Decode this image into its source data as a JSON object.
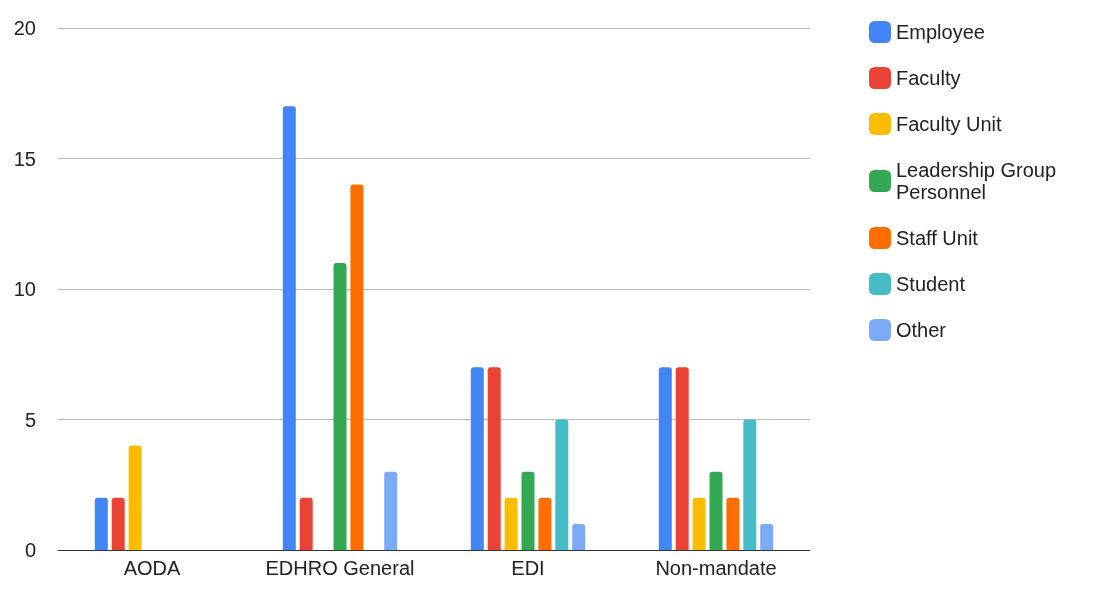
{
  "chart_data": {
    "type": "bar",
    "categories": [
      "AODA",
      "EDHRO General",
      "EDI",
      "Non-mandate"
    ],
    "series": [
      {
        "name": "Employee",
        "color": "#4285f4",
        "values": [
          2,
          17,
          7,
          7
        ]
      },
      {
        "name": "Faculty",
        "color": "#ea4335",
        "values": [
          2,
          2,
          7,
          7
        ]
      },
      {
        "name": "Faculty Unit",
        "color": "#fbbc04",
        "values": [
          4,
          0,
          2,
          2
        ]
      },
      {
        "name": "Leadership Group Personnel",
        "color": "#34a853",
        "values": [
          0,
          11,
          3,
          3
        ]
      },
      {
        "name": "Staff Unit",
        "color": "#ff6d01",
        "values": [
          0,
          14,
          2,
          2
        ]
      },
      {
        "name": "Student",
        "color": "#46bdc6",
        "values": [
          0,
          0,
          5,
          5
        ]
      },
      {
        "name": "Other",
        "color": "#7baaf7",
        "values": [
          0,
          3,
          1,
          1
        ]
      }
    ],
    "ylim": [
      0,
      20
    ],
    "yticks": [
      0,
      5,
      10,
      15,
      20
    ],
    "grid": "y",
    "legend": "right"
  }
}
